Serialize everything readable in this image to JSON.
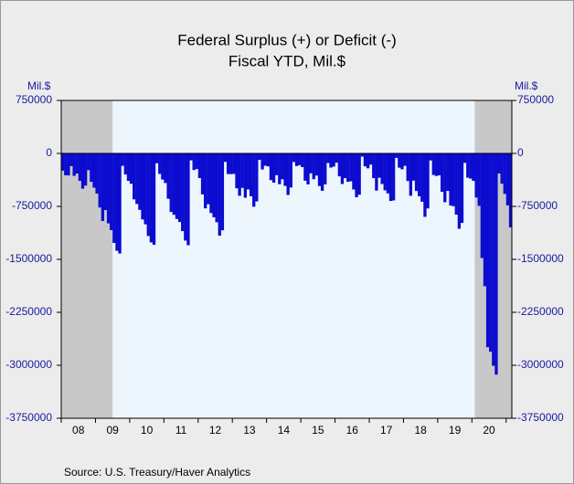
{
  "chart_data": {
    "type": "bar",
    "title": "Federal Surplus (+) or Deficit (-)",
    "subtitle": "Fiscal YTD, Mil.$",
    "ylabel": "Mil.$",
    "y2label": "Mil.$",
    "source": "Source:  U.S. Treasury/Haver Analytics",
    "color": "#0c0cd0",
    "ylim": [
      -3750000,
      750000
    ],
    "yticks": [
      750000,
      0,
      -750000,
      -1500000,
      -2250000,
      -3000000,
      -3750000
    ],
    "y2lim": [
      -3750000,
      750000
    ],
    "y2ticks": [
      750000,
      0,
      -750000,
      -1500000,
      -2250000,
      -3000000,
      -3750000
    ],
    "recessions": [
      [
        0,
        17
      ],
      [
        145,
        157
      ]
    ],
    "categories": [
      null,
      null,
      null,
      null,
      null,
      "08",
      null,
      null,
      null,
      null,
      null,
      null,
      null,
      null,
      null,
      null,
      null,
      "09",
      null,
      null,
      null,
      null,
      null,
      null,
      null,
      null,
      null,
      null,
      null,
      "10",
      null,
      null,
      null,
      null,
      null,
      null,
      null,
      null,
      null,
      null,
      null,
      "11",
      null,
      null,
      null,
      null,
      null,
      null,
      null,
      null,
      null,
      null,
      null,
      "12",
      null,
      null,
      null,
      null,
      null,
      null,
      null,
      null,
      null,
      null,
      null,
      "13",
      null,
      null,
      null,
      null,
      null,
      null,
      null,
      null,
      null,
      null,
      null,
      "14",
      null,
      null,
      null,
      null,
      null,
      null,
      null,
      null,
      null,
      null,
      null,
      "15",
      null,
      null,
      null,
      null,
      null,
      null,
      null,
      null,
      null,
      null,
      null,
      "16",
      null,
      null,
      null,
      null,
      null,
      null,
      null,
      null,
      null,
      null,
      null,
      "17",
      null,
      null,
      null,
      null,
      null,
      null,
      null,
      null,
      null,
      null,
      null,
      "18",
      null,
      null,
      null,
      null,
      null,
      null,
      null,
      null,
      null,
      null,
      null,
      "19",
      null,
      null,
      null,
      null,
      null,
      null,
      null,
      null,
      null,
      null,
      null,
      "20",
      null,
      null,
      null,
      null,
      null,
      null,
      null,
      null
    ],
    "values": [
      -245000,
      -310000,
      -311000,
      -180000,
      -318000,
      -285000,
      -388000,
      -499000,
      -455000,
      -237000,
      -402000,
      -485000,
      -569000,
      -765000,
      -956000,
      -802000,
      -991000,
      -1086000,
      -1267000,
      -1378000,
      -1417000,
      -176000,
      -297000,
      -389000,
      -430000,
      -651000,
      -717000,
      -799000,
      -935000,
      -1004000,
      -1169000,
      -1260000,
      -1294000,
      -140000,
      -290000,
      -370000,
      -419000,
      -642000,
      -829000,
      -870000,
      -928000,
      -971000,
      -1100000,
      -1234000,
      -1300000,
      -98000,
      -235000,
      -221000,
      -349000,
      -580000,
      -778000,
      -719000,
      -844000,
      -904000,
      -974000,
      -1165000,
      -1089000,
      -120000,
      -292000,
      -293000,
      -290000,
      -494000,
      -600000,
      -488000,
      -627000,
      -510000,
      -607000,
      -755000,
      -680000,
      -91000,
      -227000,
      -174000,
      -184000,
      -378000,
      -414000,
      -308000,
      -436000,
      -366000,
      -460000,
      -589000,
      -483000,
      -122000,
      -179000,
      -166000,
      -194000,
      -386000,
      -439000,
      -282000,
      -365000,
      -313000,
      -462000,
      -530000,
      -439000,
      -136000,
      -201000,
      -187000,
      -132000,
      -325000,
      -433000,
      -350000,
      -402000,
      -395000,
      -511000,
      -621000,
      -585000,
      -45000,
      -183000,
      -211000,
      -159000,
      -350000,
      -527000,
      -344000,
      -433000,
      -523000,
      -566000,
      -673000,
      -666000,
      -63000,
      -202000,
      -225000,
      -176000,
      -391000,
      -600000,
      -385000,
      -532000,
      -607000,
      -684000,
      -898000,
      -779000,
      -100000,
      -305000,
      -319000,
      -310000,
      -544000,
      -691000,
      -531000,
      -739000,
      -747000,
      -867000,
      -1067000,
      -984000,
      -134000,
      -343000,
      -357000,
      -389000,
      -624000,
      -743000,
      -1481000,
      -1880000,
      -2744000,
      -2807000,
      -3007000,
      -3132000,
      -284000,
      -429000,
      -573000,
      -736000,
      -1047000
    ]
  }
}
